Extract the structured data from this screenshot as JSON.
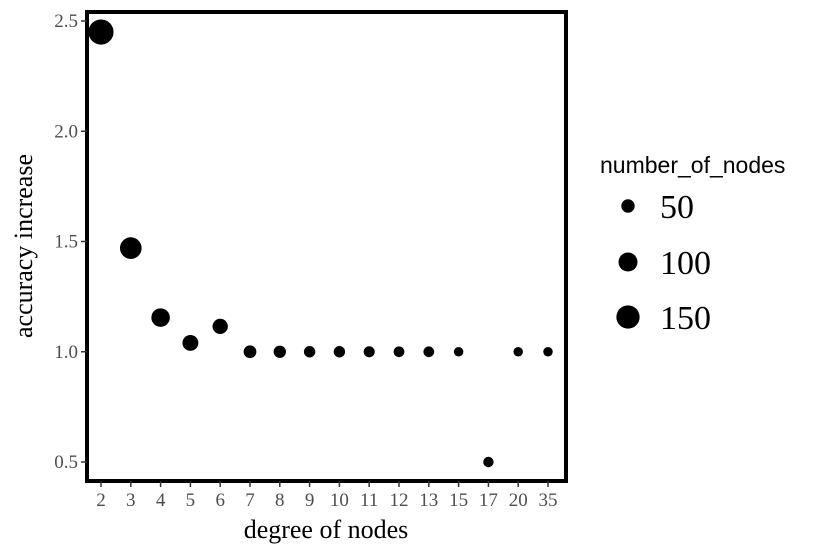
{
  "chart_data": {
    "type": "scatter",
    "xlabel": "degree of nodes",
    "ylabel": "accuracy increase",
    "categories": [
      "2",
      "3",
      "4",
      "5",
      "6",
      "7",
      "8",
      "9",
      "10",
      "11",
      "12",
      "13",
      "15",
      "17",
      "20",
      "35"
    ],
    "y_ticks": [
      0.5,
      1.0,
      1.5,
      2.0,
      2.5
    ],
    "y_tick_labels": [
      "0.5",
      "1.0",
      "1.5",
      "2.0",
      "2.5"
    ],
    "ylim": [
      0.45,
      2.55
    ],
    "grid": false,
    "points": [
      {
        "x": "2",
        "y": 2.45,
        "size": 175
      },
      {
        "x": "3",
        "y": 1.47,
        "size": 130
      },
      {
        "x": "4",
        "y": 1.155,
        "size": 95
      },
      {
        "x": "5",
        "y": 1.04,
        "size": 70
      },
      {
        "x": "6",
        "y": 1.115,
        "size": 65
      },
      {
        "x": "7",
        "y": 1.0,
        "size": 45
      },
      {
        "x": "8",
        "y": 1.0,
        "size": 42
      },
      {
        "x": "9",
        "y": 1.0,
        "size": 36
      },
      {
        "x": "10",
        "y": 1.0,
        "size": 36
      },
      {
        "x": "11",
        "y": 1.0,
        "size": 34
      },
      {
        "x": "12",
        "y": 1.0,
        "size": 32
      },
      {
        "x": "13",
        "y": 1.0,
        "size": 32
      },
      {
        "x": "15",
        "y": 1.0,
        "size": 25
      },
      {
        "x": "17",
        "y": 0.5,
        "size": 30
      },
      {
        "x": "20",
        "y": 1.0,
        "size": 25
      },
      {
        "x": "35",
        "y": 1.0,
        "size": 25
      }
    ],
    "legend": {
      "title": "number_of_nodes",
      "placement": "right",
      "entries": [
        {
          "label": "50",
          "size": 50
        },
        {
          "label": "100",
          "size": 100
        },
        {
          "label": "150",
          "size": 150
        }
      ]
    },
    "colors": {
      "point": "#000000",
      "panel_border": "#000000",
      "tick_text": "#4d4d4d",
      "background": "#ffffff"
    }
  }
}
